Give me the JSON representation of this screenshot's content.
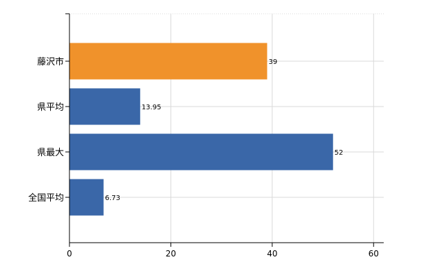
{
  "chart_data": {
    "type": "bar",
    "orientation": "horizontal",
    "categories": [
      "藤沢市",
      "県平均",
      "県最大",
      "全国平均"
    ],
    "values": [
      39,
      13.95,
      52,
      6.73
    ],
    "value_labels": [
      "39",
      "13.95",
      "52",
      "6.73"
    ],
    "bar_colors": [
      "#f0922b",
      "#3a67a8",
      "#3a67a8",
      "#3a67a8"
    ],
    "xlim": [
      0,
      62
    ],
    "xticks": [
      0,
      20,
      40,
      60
    ],
    "xtick_labels": [
      "0",
      "20",
      "40",
      "60"
    ],
    "grid": true,
    "legend": "none"
  }
}
